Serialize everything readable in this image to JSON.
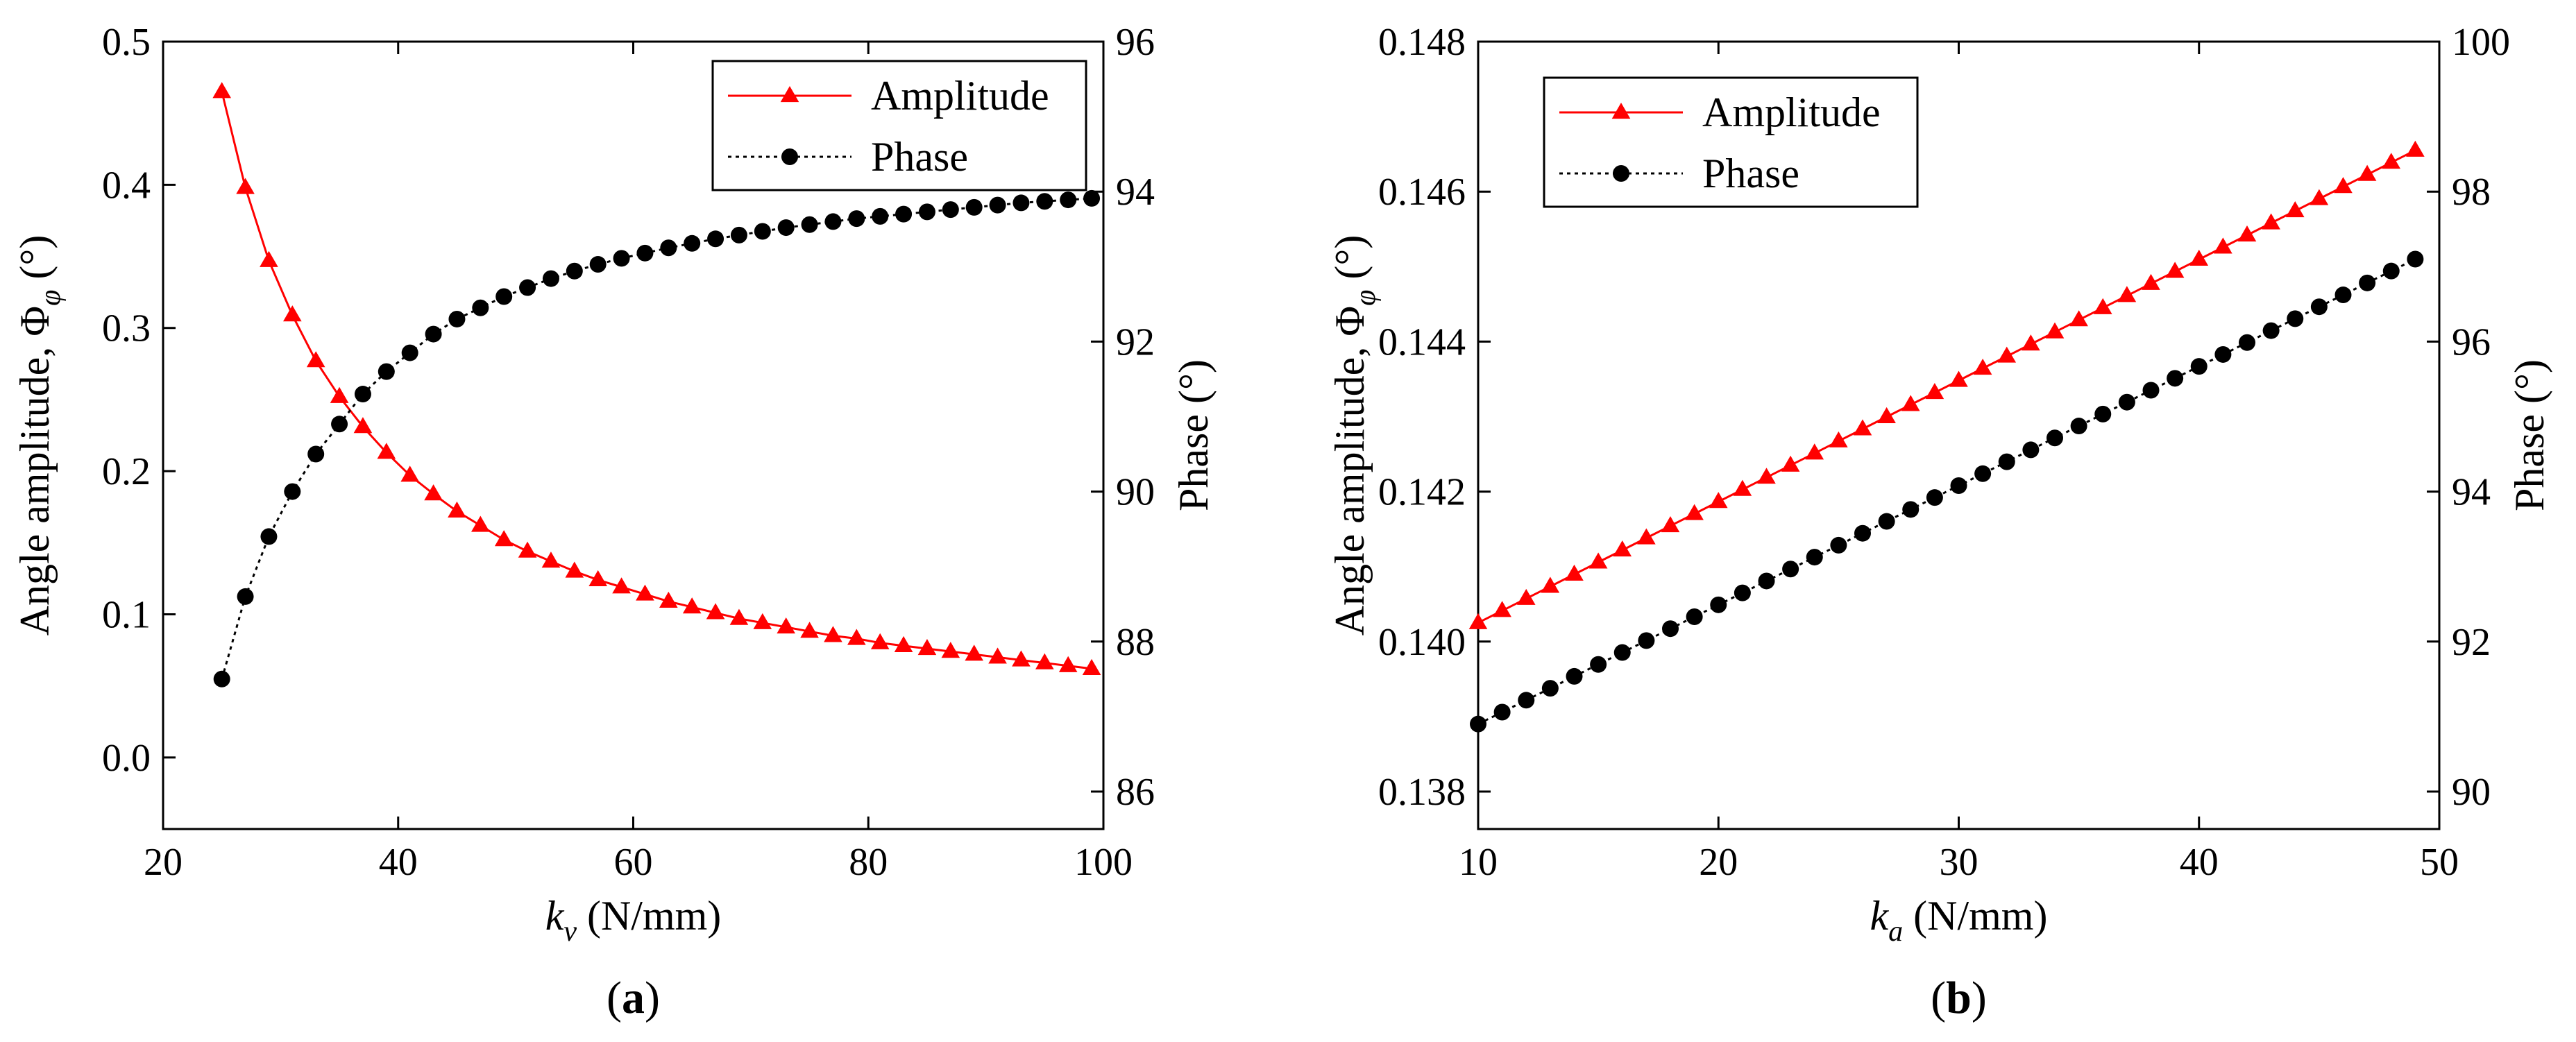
{
  "chart_data": [
    {
      "type": "line",
      "panel_label": "(a)",
      "xlabel_var": "k",
      "xlabel_sub": "v",
      "xlabel_unit": " (N/mm)",
      "ylabel_left": "Angle amplitude, Φ",
      "ylabel_left_sub": "φ",
      "ylabel_left_unit": " (°)",
      "ylabel_right": "Phase (°)",
      "xlim": [
        20,
        100
      ],
      "ylim_left": [
        -0.05,
        0.5
      ],
      "ylim_right": [
        85.5,
        96
      ],
      "xticks": [
        20,
        40,
        60,
        80,
        100
      ],
      "xtick_labels": [
        "20",
        "40",
        "60",
        "80",
        "100"
      ],
      "yticks_left": [
        0.0,
        0.1,
        0.2,
        0.3,
        0.4,
        0.5
      ],
      "ytick_labels_left": [
        "0.0",
        "0.1",
        "0.2",
        "0.3",
        "0.4",
        "0.5"
      ],
      "yticks_right": [
        86,
        88,
        90,
        92,
        94,
        96
      ],
      "ytick_labels_right": [
        "86",
        "88",
        "90",
        "92",
        "94",
        "96"
      ],
      "legend": {
        "position": "top-right",
        "entries": [
          "Amplitude",
          "Phase"
        ]
      },
      "series": [
        {
          "name": "Amplitude",
          "axis": "left",
          "color": "#ff0000",
          "marker": "triangle",
          "line": "solid",
          "x": [
            25,
            27,
            29,
            31,
            33,
            35,
            37,
            39,
            41,
            43,
            45,
            47,
            49,
            51,
            53,
            55,
            57,
            59,
            61,
            63,
            65,
            67,
            69,
            71,
            73,
            75,
            77,
            79,
            81,
            83,
            85,
            87,
            89,
            91,
            93,
            95,
            97,
            99
          ],
          "values": [
            0.465,
            0.398,
            0.347,
            0.309,
            0.277,
            0.252,
            0.231,
            0.213,
            0.197,
            0.184,
            0.172,
            0.162,
            0.152,
            0.144,
            0.137,
            0.13,
            0.124,
            0.119,
            0.114,
            0.109,
            0.105,
            0.101,
            0.097,
            0.094,
            0.091,
            0.088,
            0.085,
            0.083,
            0.08,
            0.078,
            0.076,
            0.074,
            0.072,
            0.07,
            0.068,
            0.066,
            0.064,
            0.062
          ]
        },
        {
          "name": "Phase",
          "axis": "right",
          "color": "#000000",
          "marker": "circle",
          "line": "dotted",
          "x": [
            25,
            27,
            29,
            31,
            33,
            35,
            37,
            39,
            41,
            43,
            45,
            47,
            49,
            51,
            53,
            55,
            57,
            59,
            61,
            63,
            65,
            67,
            69,
            71,
            73,
            75,
            77,
            79,
            81,
            83,
            85,
            87,
            89,
            91,
            93,
            95,
            97,
            99
          ],
          "values": [
            87.5,
            88.6,
            89.4,
            90.0,
            90.5,
            90.9,
            91.3,
            91.6,
            91.85,
            92.1,
            92.3,
            92.45,
            92.6,
            92.72,
            92.84,
            92.94,
            93.03,
            93.11,
            93.18,
            93.25,
            93.31,
            93.37,
            93.42,
            93.47,
            93.52,
            93.56,
            93.6,
            93.64,
            93.67,
            93.7,
            93.73,
            93.76,
            93.79,
            93.82,
            93.85,
            93.87,
            93.89,
            93.91
          ]
        }
      ]
    },
    {
      "type": "line",
      "panel_label": "(b)",
      "xlabel_var": "k",
      "xlabel_sub": "a",
      "xlabel_unit": " (N/mm)",
      "ylabel_left": "Angle amplitude, Φ",
      "ylabel_left_sub": "φ",
      "ylabel_left_unit": " (°)",
      "ylabel_right": "Phase (°)",
      "xlim": [
        10,
        50
      ],
      "ylim_left": [
        0.1375,
        0.148
      ],
      "ylim_right": [
        89.5,
        100
      ],
      "xticks": [
        10,
        20,
        30,
        40,
        50
      ],
      "xtick_labels": [
        "10",
        "20",
        "30",
        "40",
        "50"
      ],
      "yticks_left": [
        0.138,
        0.14,
        0.142,
        0.144,
        0.146,
        0.148
      ],
      "ytick_labels_left": [
        "0.138",
        "0.140",
        "0.142",
        "0.144",
        "0.146",
        "0.148"
      ],
      "yticks_right": [
        90,
        92,
        94,
        96,
        98,
        100
      ],
      "ytick_labels_right": [
        "90",
        "92",
        "94",
        "96",
        "98",
        "100"
      ],
      "legend": {
        "position": "top-left",
        "entries": [
          "Amplitude",
          "Phase"
        ]
      },
      "series": [
        {
          "name": "Amplitude",
          "axis": "left",
          "color": "#ff0000",
          "marker": "triangle",
          "line": "solid",
          "x_start": 10,
          "x_end": 49,
          "x_step": 1,
          "y_start": 0.14025,
          "y_end": 0.14655
        },
        {
          "name": "Phase",
          "axis": "right",
          "color": "#000000",
          "marker": "circle",
          "line": "dotted",
          "x_start": 10,
          "x_end": 49,
          "x_step": 1,
          "y_start": 90.9,
          "y_end": 97.1
        }
      ]
    }
  ]
}
